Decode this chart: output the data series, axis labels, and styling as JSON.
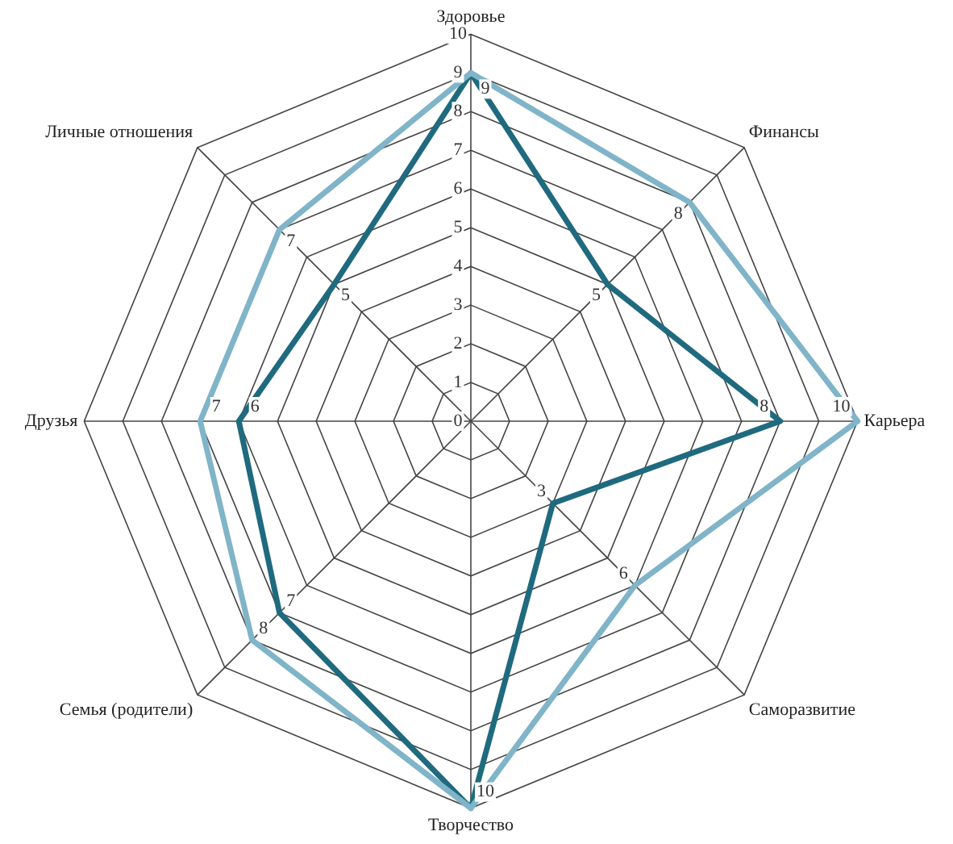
{
  "chart_data": {
    "type": "radar",
    "categories": [
      "Здоровье",
      "Финансы",
      "Карьера",
      "Саморазвитие",
      "Творчество",
      "Семья (родители)",
      "Друзья",
      "Личные отношения"
    ],
    "series": [
      {
        "color": "#80b4c8",
        "values": [
          9,
          8,
          10,
          6,
          10,
          8,
          7,
          7
        ],
        "value_labels": [
          "9",
          "8",
          "10",
          "6",
          "10",
          "8",
          "7",
          "7"
        ]
      },
      {
        "color": "#1f6a7e",
        "values": [
          9,
          5,
          8,
          3,
          10,
          7,
          6,
          5
        ],
        "value_labels": [
          null,
          "5",
          "8",
          "3",
          null,
          "7",
          "6",
          "5"
        ]
      }
    ],
    "ylim": [
      0,
      10
    ],
    "yticks": [
      0,
      1,
      2,
      3,
      4,
      5,
      6,
      7,
      8,
      9,
      10
    ],
    "grid": true,
    "legend": false,
    "marker": "none"
  }
}
